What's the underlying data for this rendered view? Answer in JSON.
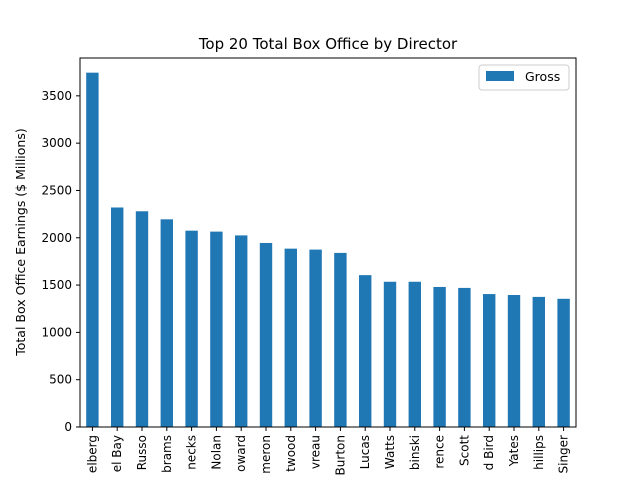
{
  "chart_data": {
    "type": "bar",
    "title": "Top 20 Total Box Office by Director",
    "xlabel": "",
    "ylabel": "Total Box Office Earnings ($ Millions)",
    "ylim": [
      0,
      3900
    ],
    "yticks": [
      0,
      500,
      1000,
      1500,
      2000,
      2500,
      3000,
      3500
    ],
    "grid": false,
    "legend_position": "top-right",
    "series": [
      {
        "name": "Gross",
        "color": "#1f77b4",
        "values": [
          3745,
          2320,
          2280,
          2195,
          2075,
          2065,
          2025,
          1945,
          1885,
          1875,
          1840,
          1605,
          1535,
          1535,
          1480,
          1470,
          1405,
          1395,
          1375,
          1355
        ]
      }
    ],
    "categories": [
      "elberg",
      "el Bay",
      "Russo",
      "brams",
      "necks",
      "Nolan",
      "oward",
      "meron",
      "twood",
      "vreau",
      "Burton",
      "Lucas",
      "Watts",
      "binski",
      "rence",
      "Scott",
      "d Bird",
      "Yates",
      "hillips",
      "Singer"
    ]
  }
}
